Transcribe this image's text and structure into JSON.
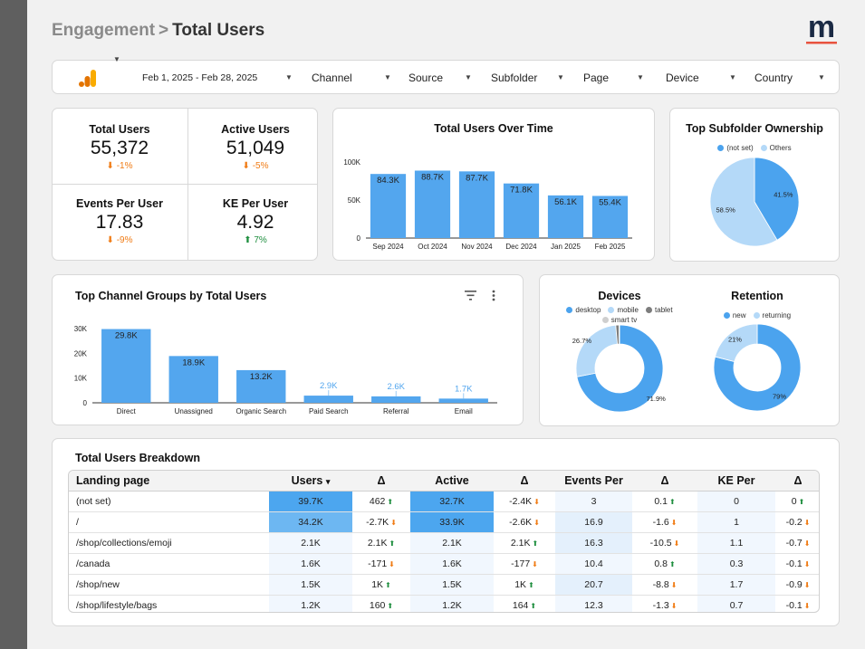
{
  "breadcrumb": {
    "parent": "Engagement",
    "separator": ">",
    "current": "Total Users"
  },
  "logo": {
    "letter": "m",
    "underline_color": "#e8533f"
  },
  "filters": {
    "ga_icon": "google-analytics-icon",
    "date_range": "Feb 1, 2025 - Feb 28, 2025",
    "items": [
      "Channel",
      "Source",
      "Subfolder",
      "Page",
      "Device",
      "Country"
    ]
  },
  "kpis": [
    {
      "label": "Total Users",
      "value": "55,372",
      "delta": "-1%",
      "direction": "down"
    },
    {
      "label": "Active Users",
      "value": "51,049",
      "delta": "-5%",
      "direction": "down"
    },
    {
      "label": "Events Per User",
      "value": "17.83",
      "delta": "-9%",
      "direction": "down"
    },
    {
      "label": "KE Per User",
      "value": "4.92",
      "delta": "7%",
      "direction": "up"
    }
  ],
  "colors": {
    "bar": "#53a6ee",
    "pie_main": "#4ba3ee",
    "pie_light": "#b4d9f8",
    "tablet": "#7d7d7d",
    "smarttv": "#cfcfcf",
    "neg": "#f07b14",
    "pos": "#1e8e3e",
    "heat_strong": "#4ca6ef",
    "heat_mid": "#6db7f2",
    "heat_light": "#e4f0fc",
    "heat_faint": "#f1f7fe"
  },
  "chart_data": [
    {
      "id": "users_over_time",
      "type": "bar",
      "title": "Total Users Over Time",
      "categories": [
        "Sep 2024",
        "Oct 2024",
        "Nov 2024",
        "Dec 2024",
        "Jan 2025",
        "Feb 2025"
      ],
      "values": [
        84300,
        88700,
        87700,
        71800,
        56100,
        55400
      ],
      "data_labels": [
        "84.3K",
        "88.7K",
        "87.7K",
        "71.8K",
        "56.1K",
        "55.4K"
      ],
      "ylim": [
        0,
        100000
      ],
      "yticks": [
        0,
        50000,
        100000
      ],
      "ytick_labels": [
        "0",
        "50K",
        "100K"
      ]
    },
    {
      "id": "subfolder_ownership",
      "type": "pie",
      "title": "Top Subfolder Ownership",
      "labels": [
        "(not set)",
        "Others"
      ],
      "values": [
        41.5,
        58.5
      ],
      "data_labels": [
        "41.5%",
        "58.5%"
      ],
      "legend": "top"
    },
    {
      "id": "channel_groups",
      "type": "bar",
      "title": "Top Channel Groups by Total Users",
      "categories": [
        "Direct",
        "Unassigned",
        "Organic Search",
        "Paid Search",
        "Referral",
        "Email"
      ],
      "values": [
        29800,
        18900,
        13200,
        2900,
        2600,
        1700
      ],
      "data_labels": [
        "29.8K",
        "18.9K",
        "13.2K",
        "2.9K",
        "2.6K",
        "1.7K"
      ],
      "ylim": [
        0,
        30000
      ],
      "yticks": [
        0,
        10000,
        20000,
        30000
      ],
      "ytick_labels": [
        "0",
        "10K",
        "20K",
        "30K"
      ]
    },
    {
      "id": "devices",
      "type": "pie",
      "title": "Devices",
      "labels": [
        "desktop",
        "mobile",
        "tablet",
        "smart tv"
      ],
      "values": [
        71.9,
        26.7,
        1.2,
        0.2
      ],
      "data_labels": [
        "71.9%",
        "26.7%",
        "",
        ""
      ],
      "legend": "top"
    },
    {
      "id": "retention",
      "type": "pie",
      "title": "Retention",
      "labels": [
        "new",
        "returning"
      ],
      "values": [
        79,
        21
      ],
      "data_labels": [
        "79%",
        "21%"
      ],
      "legend": "top"
    }
  ],
  "channel_icons": {
    "filter": "filter-icon",
    "more": "more-vert-icon"
  },
  "table": {
    "title": "Total Users Breakdown",
    "columns": [
      "Landing page",
      "Users",
      "Δ",
      "Active",
      "Δ",
      "Events Per",
      "Δ",
      "KE Per",
      "Δ"
    ],
    "sort_indicator": "▾",
    "rows": [
      {
        "page": "(not set)",
        "users": "39.7K",
        "users_d": "462",
        "users_dir": "up",
        "active": "32.7K",
        "active_d": "-2.4K",
        "active_dir": "down",
        "events": "3",
        "events_d": "0.1",
        "events_dir": "up",
        "ke": "0",
        "ke_d": "0",
        "ke_dir": "up"
      },
      {
        "page": "/",
        "users": "34.2K",
        "users_d": "-2.7K",
        "users_dir": "down",
        "active": "33.9K",
        "active_d": "-2.6K",
        "active_dir": "down",
        "events": "16.9",
        "events_d": "-1.6",
        "events_dir": "down",
        "ke": "1",
        "ke_d": "-0.2",
        "ke_dir": "down"
      },
      {
        "page": "/shop/collections/emoji",
        "users": "2.1K",
        "users_d": "2.1K",
        "users_dir": "up",
        "active": "2.1K",
        "active_d": "2.1K",
        "active_dir": "up",
        "events": "16.3",
        "events_d": "-10.5",
        "events_dir": "down",
        "ke": "1.1",
        "ke_d": "-0.7",
        "ke_dir": "down"
      },
      {
        "page": "/canada",
        "users": "1.6K",
        "users_d": "-171",
        "users_dir": "down",
        "active": "1.6K",
        "active_d": "-177",
        "active_dir": "down",
        "events": "10.4",
        "events_d": "0.8",
        "events_dir": "up",
        "ke": "0.3",
        "ke_d": "-0.1",
        "ke_dir": "down"
      },
      {
        "page": "/shop/new",
        "users": "1.5K",
        "users_d": "1K",
        "users_dir": "up",
        "active": "1.5K",
        "active_d": "1K",
        "active_dir": "up",
        "events": "20.7",
        "events_d": "-8.8",
        "events_dir": "down",
        "ke": "1.7",
        "ke_d": "-0.9",
        "ke_dir": "down"
      },
      {
        "page": "/shop/lifestyle/bags",
        "users": "1.2K",
        "users_d": "160",
        "users_dir": "up",
        "active": "1.2K",
        "active_d": "164",
        "active_dir": "up",
        "events": "12.3",
        "events_d": "-1.3",
        "events_dir": "down",
        "ke": "0.7",
        "ke_d": "-0.1",
        "ke_dir": "down"
      }
    ]
  }
}
